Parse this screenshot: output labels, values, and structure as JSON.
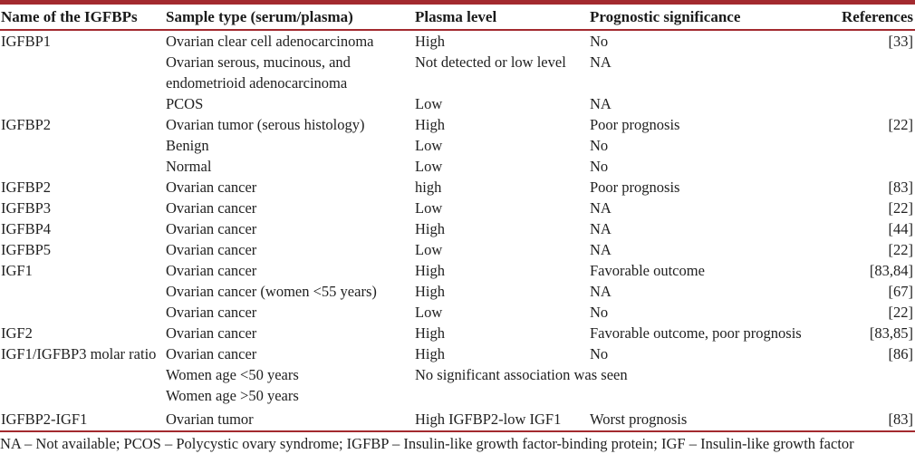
{
  "table": {
    "columns": [
      "Name of the IGFBPs",
      "Sample type (serum/plasma)",
      "Plasma level",
      "Prognostic significance",
      "References"
    ],
    "rows": [
      {
        "name": "IGFBP1",
        "sample": "Ovarian clear cell adenocarcinoma",
        "plasma": "High",
        "prognostic": "No",
        "ref": "[33]"
      },
      {
        "name": "",
        "sample": "Ovarian serous, mucinous, and endometrioid adenocarcinoma",
        "plasma": "Not detected or low level",
        "prognostic": "NA",
        "ref": ""
      },
      {
        "name": "",
        "sample": "PCOS",
        "plasma": "Low",
        "prognostic": "NA",
        "ref": ""
      },
      {
        "name": "IGFBP2",
        "sample": "Ovarian tumor (serous histology)",
        "plasma": "High",
        "prognostic": "Poor prognosis",
        "ref": "[22]"
      },
      {
        "name": "",
        "sample": "Benign",
        "plasma": "Low",
        "prognostic": "No",
        "ref": ""
      },
      {
        "name": "",
        "sample": "Normal",
        "plasma": "Low",
        "prognostic": "No",
        "ref": ""
      },
      {
        "name": "IGFBP2",
        "sample": "Ovarian cancer",
        "plasma": "high",
        "prognostic": "Poor prognosis",
        "ref": "[83]"
      },
      {
        "name": "IGFBP3",
        "sample": "Ovarian cancer",
        "plasma": "Low",
        "prognostic": "NA",
        "ref": "[22]"
      },
      {
        "name": "IGFBP4",
        "sample": "Ovarian cancer",
        "plasma": "High",
        "prognostic": "NA",
        "ref": "[44]"
      },
      {
        "name": "IGFBP5",
        "sample": "Ovarian cancer",
        "plasma": "Low",
        "prognostic": "NA",
        "ref": "[22]"
      },
      {
        "name": "IGF1",
        "sample": "Ovarian cancer",
        "plasma": "High",
        "prognostic": "Favorable outcome",
        "ref": "[83,84]"
      },
      {
        "name": "",
        "sample": "Ovarian cancer (women <55 years)",
        "plasma": "High",
        "prognostic": "NA",
        "ref": "[67]"
      },
      {
        "name": "",
        "sample": "Ovarian cancer",
        "plasma": "Low",
        "prognostic": "No",
        "ref": "[22]"
      },
      {
        "name": "IGF2",
        "sample": "Ovarian cancer",
        "plasma": "High",
        "prognostic": "Favorable outcome, poor prognosis",
        "ref": "[83,85]"
      },
      {
        "name": "IGF1/IGFBP3 molar ratio",
        "name_rowspan": 2,
        "sample": "Ovarian cancer",
        "plasma": "High",
        "prognostic": "No",
        "ref": "[86]"
      },
      {
        "skip_name": true,
        "sample": "Women age <50 years",
        "span_note": "No significant association was seen"
      },
      {
        "name": "",
        "sample": "Women age >50 years",
        "plasma": "",
        "prognostic": "",
        "ref": ""
      },
      {
        "name": "IGFBP2-IGF1",
        "sample": "Ovarian tumor",
        "plasma": "High IGFBP2-low IGF1",
        "prognostic": "Worst prognosis",
        "ref": "[83]",
        "last": true
      }
    ]
  },
  "footnote": "NA – Not available; PCOS – Polycystic ovary syndrome; IGFBP – Insulin-like growth factor-binding protein; IGF – Insulin-like growth factor",
  "colors": {
    "accent_red": "#a32a2f",
    "text": "#212121",
    "background": "#ffffff"
  }
}
